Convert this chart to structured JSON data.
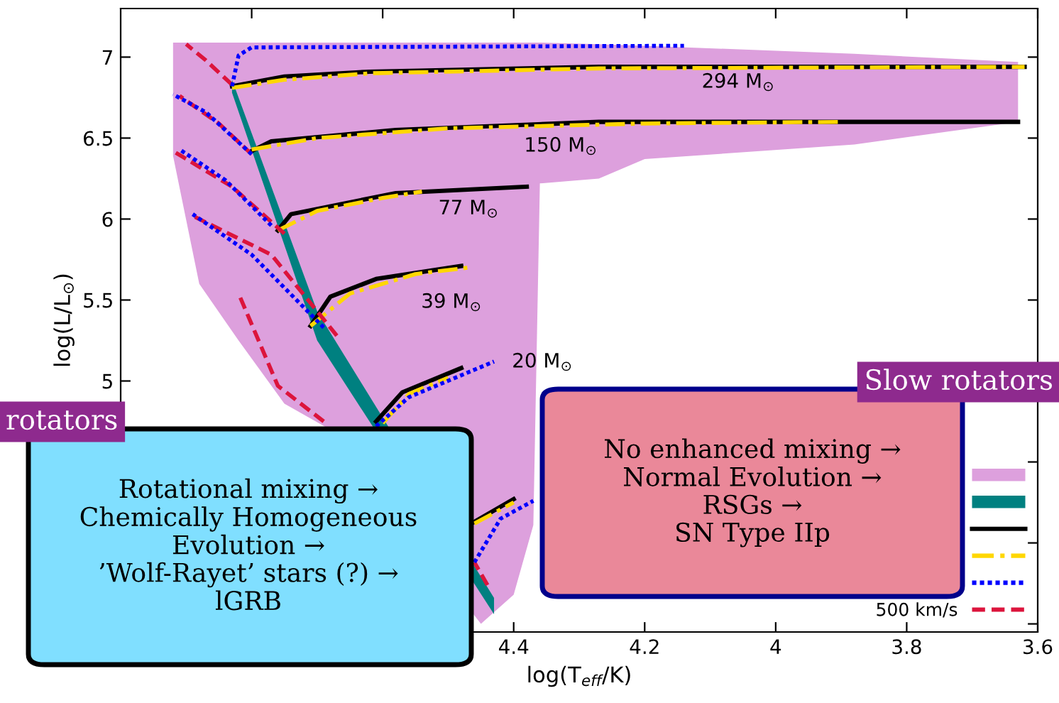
{
  "chart_data": {
    "type": "line",
    "xlabel": "log(T$_{eff}$/K)",
    "ylabel": "log(L/L$_{⊙}$)",
    "xlim": [
      5.0,
      3.6
    ],
    "ylim": [
      3.45,
      7.3
    ],
    "xticks": [
      {
        "value": 4.8,
        "label": null
      },
      {
        "value": 4.6,
        "label": null
      },
      4.4,
      4.2,
      4,
      3.8,
      3.6
    ],
    "yticks": [
      {
        "value": 3.5,
        "label": null
      },
      {
        "value": 4,
        "label": null
      },
      {
        "value": 4.5,
        "label": null
      },
      5,
      5.5,
      6,
      6.5,
      7
    ],
    "grid": false,
    "legend": "bottom right",
    "marker": "none",
    "series": [
      {
        "color": "#dda0dd",
        "x": [
          4.92,
          4.88,
          4.82,
          4.75,
          4.68,
          4.45,
          4.4,
          4.37,
          4.36,
          4.27,
          4.2,
          3.88,
          3.63
        ],
        "values": [
          null,
          null,
          null,
          null,
          null,
          null,
          null,
          null,
          null,
          null,
          null,
          null,
          null
        ],
        "upper": [
          7.09,
          7.09,
          7.09,
          7.09,
          7.09,
          7.09,
          7.09,
          7.09,
          7.09,
          7.08,
          7.07,
          7.02,
          6.97
        ],
        "lower": [
          6.39,
          5.6,
          5.25,
          4.86,
          4.7,
          3.5,
          3.68,
          4.11,
          6.22,
          6.25,
          6.37,
          6.46,
          6.6
        ]
      },
      {
        "color": "#008080",
        "x": [
          4.83,
          4.7,
          4.43
        ],
        "values": [
          null,
          null,
          null
        ],
        "upper": [
          6.86,
          5.43,
          3.66
        ],
        "lower": [
          6.78,
          5.25,
          3.56
        ]
      },
      {
        "color": "#000000",
        "line_style": "solid",
        "x": [
          4.83,
          4.75,
          4.62,
          4.27,
          3.62
        ],
        "values": [
          6.82,
          6.88,
          6.91,
          6.94,
          6.94
        ]
      },
      {
        "color": "#000000",
        "line_style": "solid",
        "x": [
          4.8,
          4.77,
          4.58,
          4.27,
          3.63
        ],
        "values": [
          6.42,
          6.48,
          6.55,
          6.6,
          6.6
        ]
      },
      {
        "color": "#000000",
        "line_style": "solid",
        "x": [
          4.76,
          4.74,
          4.58,
          4.38
        ],
        "values": [
          5.93,
          6.03,
          6.16,
          6.2
        ]
      },
      {
        "color": "#000000",
        "line_style": "solid",
        "x": [
          4.71,
          4.68,
          4.61,
          4.48
        ],
        "values": [
          5.34,
          5.52,
          5.63,
          5.71
        ]
      },
      {
        "color": "#000000",
        "line_style": "solid",
        "x": [
          4.61,
          4.57,
          4.48
        ],
        "values": [
          4.75,
          4.93,
          5.08
        ]
      },
      {
        "color": "#000000",
        "line_style": "solid",
        "x": [
          4.46,
          4.4
        ],
        "values": [
          4.13,
          4.27
        ]
      },
      {
        "color": "#ffd700",
        "line_style": "dashdot",
        "x": [
          4.83,
          4.75,
          4.62,
          4.27,
          3.62
        ],
        "values": [
          6.81,
          6.86,
          6.9,
          6.93,
          6.94
        ]
      },
      {
        "color": "#ffd700",
        "line_style": "dashdot",
        "x": [
          4.8,
          4.7,
          4.5,
          4.2,
          3.9
        ],
        "values": [
          6.43,
          6.5,
          6.56,
          6.59,
          6.6
        ]
      },
      {
        "color": "#ffd700",
        "line_style": "dashdot",
        "x": [
          4.76,
          4.7,
          4.6,
          4.54
        ],
        "values": [
          5.93,
          6.05,
          6.13,
          6.17
        ]
      },
      {
        "color": "#ffd700",
        "line_style": "dashdot",
        "x": [
          4.71,
          4.65,
          4.55,
          4.47
        ],
        "values": [
          5.34,
          5.54,
          5.66,
          5.7
        ]
      },
      {
        "color": "#ffd700",
        "line_style": "dashdot",
        "x": [
          4.6,
          4.56,
          4.5
        ],
        "values": [
          4.74,
          4.92,
          5.02
        ]
      },
      {
        "color": "#ffd700",
        "line_style": "dashdot",
        "x": [
          4.46,
          4.4
        ],
        "values": [
          4.12,
          4.25
        ]
      },
      {
        "color": "#0000ff",
        "line_style": "dotted",
        "x": [
          4.83,
          4.82,
          4.8,
          4.14
        ],
        "values": [
          6.82,
          7.01,
          7.06,
          7.07
        ]
      },
      {
        "color": "#0000ff",
        "line_style": "dotted",
        "x": [
          4.8,
          4.87,
          4.92
        ],
        "values": [
          6.4,
          6.66,
          6.77
        ]
      },
      {
        "color": "#0000ff",
        "line_style": "dotted",
        "x": [
          4.77,
          4.84,
          4.91
        ],
        "values": [
          5.96,
          6.24,
          6.43
        ]
      },
      {
        "color": "#0000ff",
        "line_style": "dotted",
        "x": [
          4.69,
          4.8,
          4.89
        ],
        "values": [
          5.33,
          5.78,
          6.03
        ]
      },
      {
        "color": "#0000ff",
        "line_style": "dotted",
        "x": [
          4.61,
          4.56,
          4.43
        ],
        "values": [
          4.72,
          4.9,
          5.12
        ]
      },
      {
        "color": "#0000ff",
        "line_style": "dotted",
        "x": [
          4.46,
          4.42,
          4.37
        ],
        "values": [
          3.88,
          4.15,
          4.26
        ]
      },
      {
        "color": "#dc143c",
        "line_style": "dashed",
        "name": "500 km/s",
        "x": [
          4.83,
          4.87,
          4.9
        ],
        "values": [
          6.83,
          6.98,
          7.08
        ]
      },
      {
        "color": "#dc143c",
        "line_style": "dashed",
        "x": [
          4.8,
          4.85,
          4.91
        ],
        "values": [
          6.4,
          6.59,
          6.76
        ]
      },
      {
        "color": "#dc143c",
        "line_style": "dashed",
        "x": [
          4.75,
          4.83,
          4.92
        ],
        "values": [
          5.91,
          6.2,
          6.42
        ]
      },
      {
        "color": "#dc143c",
        "line_style": "dashed",
        "x": [
          4.67,
          4.77,
          4.89
        ],
        "values": [
          5.28,
          5.78,
          6.02
        ]
      },
      {
        "color": "#dc143c",
        "line_style": "dashed",
        "x": [
          4.69,
          4.76,
          4.82
        ],
        "values": [
          4.75,
          4.97,
          5.54
        ]
      },
      {
        "color": "#dc143c",
        "line_style": "dashed",
        "x": [
          4.44,
          4.46
        ],
        "values": [
          3.74,
          3.88
        ]
      }
    ],
    "annotations": [
      "294 M$_{⊙}$",
      "150 M$_{⊙}$",
      "77 M$_{⊙}$",
      "39 M$_{⊙}$",
      "20 M$_{⊙}$",
      "Rotational mixing →\nChemically Homogeneous\nEvolution →\n’Wolf-Rayet’ stars (?) →\nlGRB",
      "No enhanced mixing →\nNormal Evolution →\nRSGs →\nSN Type IIp",
      "rotators",
      "Slow rotators"
    ]
  }
}
